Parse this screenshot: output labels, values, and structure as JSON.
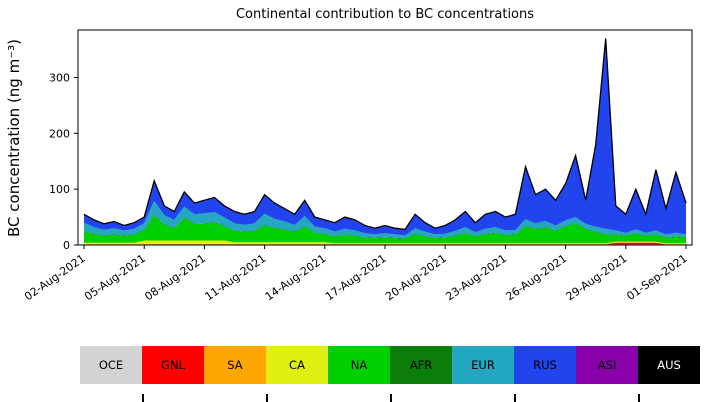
{
  "chart": {
    "title": "Continental contribution to BC concentrations",
    "ylabel": "BC concentration (ng m⁻³)"
  },
  "legend": {
    "items": [
      {
        "label": "OCE",
        "color": "#d3d3d3",
        "text_color": "#000000"
      },
      {
        "label": "GNL",
        "color": "#ff0000",
        "text_color": "#000000"
      },
      {
        "label": "SA",
        "color": "#ffa500",
        "text_color": "#000000"
      },
      {
        "label": "CA",
        "color": "#def012",
        "text_color": "#000000"
      },
      {
        "label": "NA",
        "color": "#00d000",
        "text_color": "#000000"
      },
      {
        "label": "AFR",
        "color": "#0a7d0a",
        "text_color": "#000000"
      },
      {
        "label": "EUR",
        "color": "#24a7c0",
        "text_color": "#000000"
      },
      {
        "label": "RUS",
        "color": "#2244ee",
        "text_color": "#000000"
      },
      {
        "label": "ASI",
        "color": "#8800aa",
        "text_color": "#000000"
      },
      {
        "label": "AUS",
        "color": "#000000",
        "text_color": "#ffffff"
      }
    ]
  },
  "chart_data": {
    "type": "area",
    "stacked": true,
    "title": "Continental contribution to BC concentrations",
    "xlabel": "",
    "ylabel": "BC concentration (ng m⁻³)",
    "xlim": [
      1.7,
      32.3
    ],
    "ylim": [
      0,
      385
    ],
    "grid": false,
    "legend_position": "bottom-bar",
    "x_unit": "day number within August 2021 (32 = 01-Sep-2021)",
    "x": [
      2,
      2.5,
      3,
      3.5,
      4,
      4.5,
      5,
      5.5,
      6,
      6.5,
      7,
      7.5,
      8,
      8.5,
      9,
      9.5,
      10,
      10.5,
      11,
      11.5,
      12,
      12.5,
      13,
      13.5,
      14,
      14.5,
      15,
      15.5,
      16,
      16.5,
      17,
      17.5,
      18,
      18.5,
      19,
      19.5,
      20,
      20.5,
      21,
      21.5,
      22,
      22.5,
      23,
      23.5,
      24,
      24.5,
      25,
      25.5,
      26,
      26.5,
      27,
      27.5,
      28,
      28.5,
      29,
      29.5,
      30,
      30.5,
      31,
      31.5,
      32
    ],
    "x_ticks": {
      "values": [
        2,
        5,
        8,
        11,
        14,
        17,
        20,
        23,
        26,
        29,
        32
      ],
      "labels": [
        "02-Aug-2021",
        "05-Aug-2021",
        "08-Aug-2021",
        "11-Aug-2021",
        "14-Aug-2021",
        "17-Aug-2021",
        "20-Aug-2021",
        "23-Aug-2021",
        "26-Aug-2021",
        "29-Aug-2021",
        "01-Sep-2021"
      ]
    },
    "y_ticks": {
      "values": [
        0,
        100,
        200,
        300
      ],
      "labels": [
        "0",
        "100",
        "200",
        "300"
      ]
    },
    "total_line_color": "#000000",
    "series": [
      {
        "name": "OCE",
        "color": "#d3d3d3",
        "values": [
          1,
          1,
          1,
          1,
          1,
          1,
          1,
          1,
          1,
          1,
          1,
          1,
          1,
          1,
          1,
          1,
          1,
          1,
          1,
          1,
          1,
          1,
          1,
          1,
          1,
          1,
          1,
          1,
          1,
          1,
          1,
          1,
          1,
          1,
          1,
          1,
          1,
          1,
          1,
          1,
          1,
          1,
          1,
          1,
          1,
          1,
          1,
          1,
          1,
          1,
          1,
          1,
          1,
          1,
          1,
          1,
          1,
          1,
          1,
          1,
          1
        ]
      },
      {
        "name": "GNL",
        "color": "#ff0000",
        "values": [
          0,
          0,
          0,
          0,
          0,
          0,
          0,
          0,
          0,
          0,
          0,
          0,
          0,
          0,
          0,
          0,
          0,
          0,
          0,
          0,
          0,
          0,
          0,
          0,
          0,
          0,
          0,
          0,
          0,
          0,
          0,
          0,
          0,
          0,
          0,
          0,
          0,
          0,
          0,
          0,
          0,
          0,
          0,
          0,
          0,
          0,
          0,
          0,
          0,
          0,
          0,
          0,
          0,
          3,
          3,
          3,
          3,
          3,
          0,
          0,
          0
        ]
      },
      {
        "name": "SA",
        "color": "#ffa500",
        "values": [
          1,
          1,
          1,
          1,
          1,
          1,
          1,
          1,
          1,
          1,
          1,
          1,
          1,
          1,
          1,
          1,
          1,
          1,
          1,
          1,
          1,
          1,
          1,
          1,
          1,
          1,
          1,
          1,
          1,
          1,
          1,
          1,
          1,
          1,
          1,
          1,
          1,
          1,
          1,
          1,
          1,
          1,
          1,
          1,
          1,
          1,
          1,
          1,
          1,
          1,
          1,
          1,
          1,
          1,
          1,
          1,
          1,
          1,
          1,
          1,
          1
        ]
      },
      {
        "name": "CA",
        "color": "#def012",
        "values": [
          2,
          2,
          2,
          2,
          2,
          2,
          6,
          6,
          6,
          6,
          6,
          6,
          6,
          6,
          6,
          3,
          3,
          3,
          3,
          3,
          3,
          3,
          3,
          3,
          3,
          1,
          1,
          1,
          1,
          1,
          1,
          1,
          1,
          1,
          1,
          1,
          1,
          1,
          1,
          1,
          1,
          1,
          1,
          1,
          1,
          1,
          1,
          1,
          1,
          1,
          1,
          1,
          1,
          1,
          1,
          1,
          1,
          1,
          1,
          1,
          1
        ]
      },
      {
        "name": "NA",
        "color": "#00d000",
        "values": [
          20,
          15,
          12,
          14,
          12,
          14,
          18,
          45,
          28,
          22,
          40,
          30,
          30,
          32,
          25,
          20,
          18,
          20,
          30,
          25,
          22,
          18,
          28,
          16,
          14,
          12,
          15,
          13,
          10,
          9,
          10,
          9,
          8,
          16,
          12,
          9,
          10,
          13,
          18,
          12,
          16,
          18,
          14,
          15,
          30,
          25,
          28,
          22,
          30,
          35,
          25,
          20,
          15,
          12,
          10,
          14,
          10,
          12,
          10,
          12,
          10
        ]
      },
      {
        "name": "AFR",
        "color": "#0a7d0a",
        "values": [
          1,
          1,
          1,
          1,
          1,
          1,
          1,
          1,
          1,
          1,
          1,
          1,
          1,
          1,
          1,
          1,
          1,
          1,
          1,
          1,
          1,
          1,
          1,
          1,
          1,
          1,
          1,
          1,
          1,
          1,
          1,
          1,
          1,
          1,
          1,
          1,
          1,
          1,
          1,
          1,
          1,
          1,
          1,
          1,
          1,
          1,
          1,
          1,
          1,
          1,
          1,
          1,
          1,
          1,
          1,
          1,
          1,
          1,
          1,
          1,
          1
        ]
      },
      {
        "name": "EUR",
        "color": "#24a7c0",
        "values": [
          15,
          12,
          10,
          11,
          9,
          10,
          12,
          25,
          16,
          14,
          20,
          16,
          18,
          18,
          15,
          13,
          12,
          13,
          20,
          16,
          14,
          12,
          18,
          11,
          10,
          8,
          10,
          9,
          7,
          6,
          7,
          6,
          5,
          10,
          8,
          6,
          6,
          8,
          10,
          7,
          9,
          10,
          8,
          8,
          12,
          10,
          11,
          9,
          10,
          11,
          9,
          9,
          10,
          7,
          5,
          7,
          5,
          7,
          5,
          6,
          5
        ]
      },
      {
        "name": "RUS",
        "color": "#2244ee",
        "values": [
          14,
          12,
          10,
          11,
          8,
          10,
          10,
          35,
          16,
          14,
          25,
          19,
          22,
          25,
          20,
          20,
          18,
          20,
          33,
          27,
          22,
          18,
          27,
          16,
          14,
          15,
          20,
          18,
          13,
          10,
          13,
          10,
          10,
          24,
          15,
          10,
          14,
          19,
          27,
          16,
          25,
          27,
          23,
          27,
          93,
          50,
          56,
          44,
          65,
          109,
          41,
          146,
          340,
          43,
          32,
          71,
          32,
          108,
          45,
          107,
          55
        ]
      },
      {
        "name": "ASI",
        "color": "#8800aa",
        "values": [
          1,
          1,
          1,
          1,
          1,
          1,
          1,
          1,
          1,
          1,
          1,
          1,
          1,
          1,
          1,
          1,
          1,
          1,
          1,
          1,
          1,
          1,
          1,
          1,
          1,
          1,
          1,
          1,
          1,
          1,
          1,
          1,
          1,
          1,
          1,
          1,
          1,
          1,
          1,
          1,
          1,
          1,
          1,
          1,
          1,
          1,
          1,
          1,
          1,
          1,
          1,
          1,
          1,
          1,
          1,
          1,
          1,
          1,
          1,
          1,
          1
        ]
      },
      {
        "name": "AUS",
        "color": "#000000",
        "values": [
          0,
          0,
          0,
          0,
          0,
          0,
          0,
          0,
          0,
          0,
          0,
          0,
          0,
          0,
          0,
          0,
          0,
          0,
          0,
          0,
          0,
          0,
          0,
          0,
          0,
          0,
          0,
          0,
          0,
          0,
          0,
          0,
          0,
          0,
          0,
          0,
          0,
          0,
          0,
          0,
          0,
          0,
          0,
          0,
          0,
          0,
          0,
          0,
          0,
          0,
          0,
          0,
          0,
          0,
          0,
          0,
          0,
          0,
          0,
          0,
          0
        ]
      }
    ]
  }
}
